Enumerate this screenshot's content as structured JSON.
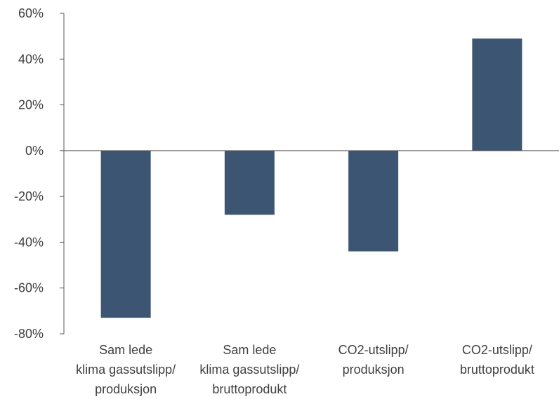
{
  "chart_data": {
    "type": "bar",
    "title": "",
    "xlabel": "",
    "ylabel": "",
    "ylim": [
      -80,
      60
    ],
    "yticks": [
      -80,
      -60,
      -40,
      -20,
      0,
      20,
      40,
      60
    ],
    "ytick_labels": [
      "-80%",
      "-60%",
      "-40%",
      "-20%",
      "0%",
      "20%",
      "40%",
      "60%"
    ],
    "categories": [
      [
        "Sam lede",
        "klima gassutslipp/",
        "produksjon"
      ],
      [
        "Sam lede",
        "klima gassutslipp/",
        "bruttoprodukt"
      ],
      [
        "CO2-utslipp/",
        "produksjon"
      ],
      [
        "CO2-utslipp/",
        "bruttoprodukt"
      ]
    ],
    "values": [
      -73,
      -28,
      -44,
      49
    ],
    "bar_color": "#3b5573",
    "axis_color": "#595959",
    "grid": false,
    "legend": "none"
  }
}
